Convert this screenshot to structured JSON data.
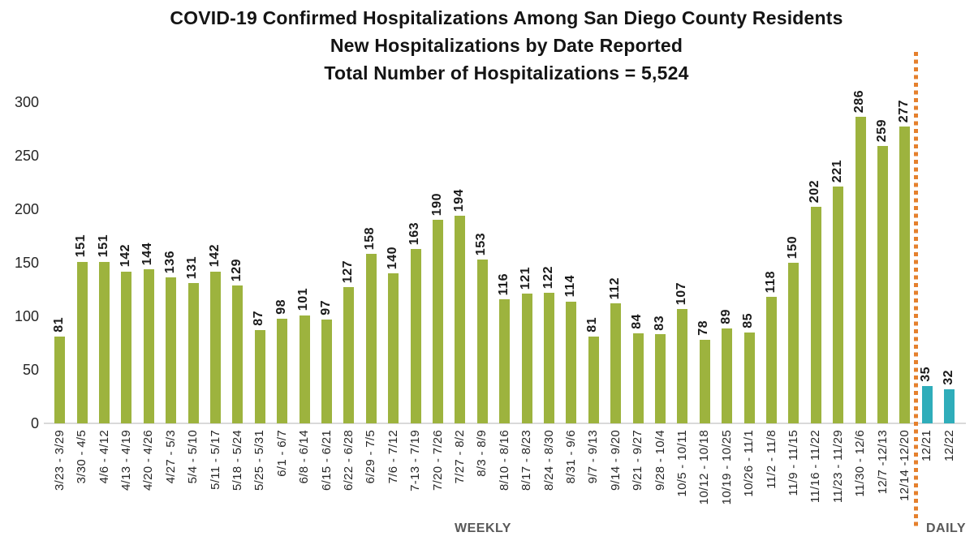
{
  "chart_data": {
    "type": "bar",
    "title_lines": [
      "COVID-19 Confirmed Hospitalizations Among San Diego County Residents",
      "New Hospitalizations by Date Reported",
      "Total Number of Hospitalizations = 5,524"
    ],
    "ylim": [
      0,
      300
    ],
    "yticks": [
      0,
      50,
      100,
      150,
      200,
      250,
      300
    ],
    "grid": false,
    "legend": "none",
    "bar_value_labels_rotated": true,
    "x_tick_labels_rotated": true,
    "groups": [
      {
        "name": "WEEKLY",
        "color": "#9db33e",
        "categories": [
          "3/23 - 3/29",
          "3/30 - 4/5",
          "4/6 - 4/12",
          "4/13 - 4/19",
          "4/20 - 4/26",
          "4/27 - 5/3",
          "5/4 - 5/10",
          "5/11 - 5/17",
          "5/18 - 5/24",
          "5/25 - 5/31",
          "6/1 - 6/7",
          "6/8 - 6/14",
          "6/15 - 6/21",
          "6/22 - 6/28",
          "6/29 - 7/5",
          "7/6 - 7/12",
          "7-13 - 7/19",
          "7/20 - 7/26",
          "7/27 - 8/2",
          "8/3 - 8/9",
          "8/10 - 8/16",
          "8/17 - 8/23",
          "8/24 - 8/30",
          "8/31 - 9/6",
          "9/7 - 9/13",
          "9/14 - 9/20",
          "9/21 - 9/27",
          "9/28 - 10/4",
          "10/5 - 10/11",
          "10/12 - 10/18",
          "10/19 - 10/25",
          "10/26 - 11/1",
          "11/2 - 11/8",
          "11/9 - 11/15",
          "11/16 - 11/22",
          "11/23 - 11/29",
          "11/30 - 12/6",
          "12/7 -12/13",
          "12/14 -12/20"
        ],
        "values": [
          81,
          151,
          151,
          142,
          144,
          136,
          131,
          142,
          129,
          87,
          98,
          101,
          97,
          127,
          158,
          140,
          163,
          190,
          194,
          153,
          116,
          121,
          122,
          114,
          81,
          112,
          84,
          83,
          107,
          78,
          89,
          85,
          118,
          150,
          202,
          221,
          286,
          259,
          277
        ]
      },
      {
        "name": "DAILY",
        "color": "#2fadba",
        "categories": [
          "12/21",
          "12/22"
        ],
        "values": [
          35,
          32
        ]
      }
    ],
    "separator_line": {
      "color": "#e5802d",
      "style": "dotted",
      "position": "between WEEKLY and DAILY sections"
    },
    "axis_line_color": "#d9d9d9"
  },
  "footer": {
    "weekly_label": "WEEKLY",
    "daily_label": "DAILY"
  }
}
